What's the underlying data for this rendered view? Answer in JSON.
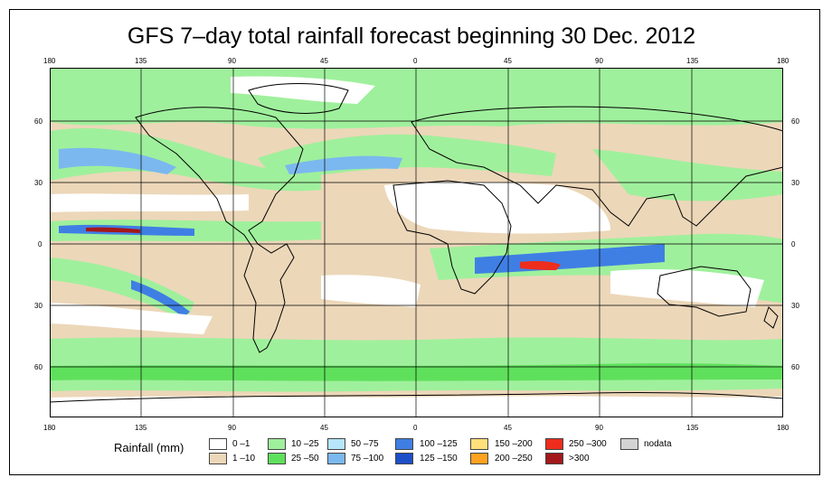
{
  "title": "GFS 7–day total rainfall forecast beginning 30 Dec. 2012",
  "map": {
    "x_ticks": [
      "180",
      "135",
      "90",
      "45",
      "0",
      "45",
      "90",
      "135",
      "180"
    ],
    "y_ticks": [
      "60",
      "30",
      "0",
      "30",
      "60"
    ]
  },
  "legend": {
    "title": "Rainfall (mm)",
    "items": [
      {
        "label": "0 –1",
        "color": "#ffffff"
      },
      {
        "label": "1 –10",
        "color": "#ecd7b9"
      },
      {
        "label": "10 –25",
        "color": "#9ff09c"
      },
      {
        "label": "25 –50",
        "color": "#5fe05c"
      },
      {
        "label": "50 –75",
        "color": "#b7e6fb"
      },
      {
        "label": "75 –100",
        "color": "#7bb8ef"
      },
      {
        "label": "100 –125",
        "color": "#3f7fe4"
      },
      {
        "label": "125 –150",
        "color": "#1d4fc7"
      },
      {
        "label": "150 –200",
        "color": "#ffe07a"
      },
      {
        "label": "200 –250",
        "color": "#ffa21f"
      },
      {
        "label": "250 –300",
        "color": "#ee2d1c"
      },
      {
        "label": ">300",
        "color": "#a3181b"
      },
      {
        "label": "nodata",
        "color": "#d3d3d3"
      }
    ]
  }
}
